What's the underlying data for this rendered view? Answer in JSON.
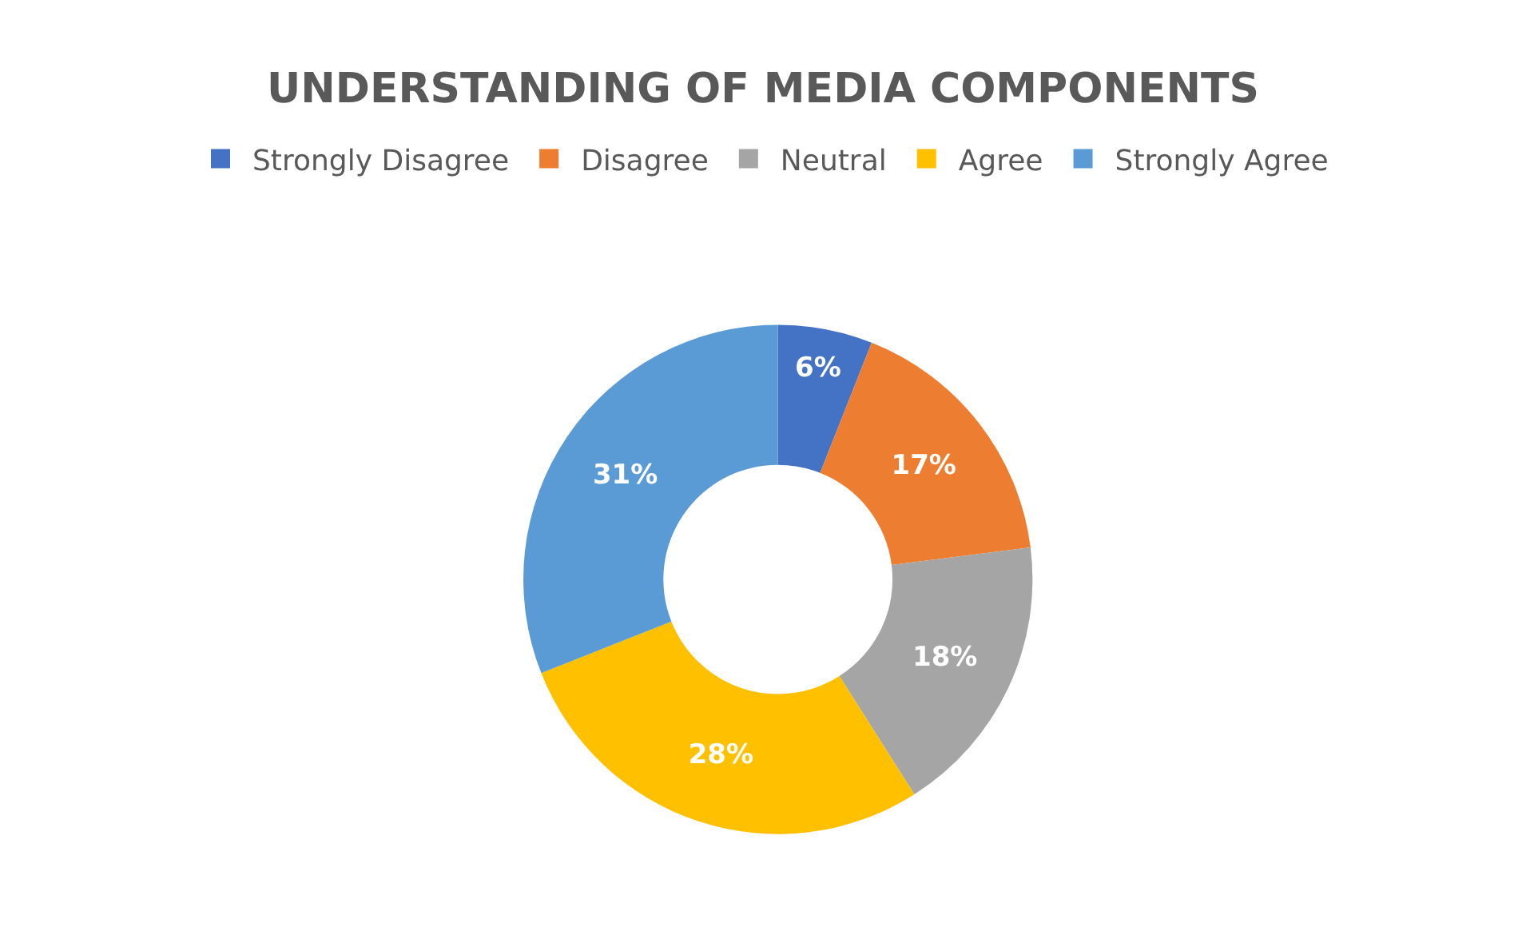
{
  "chart_data": {
    "type": "donut",
    "title": "UNDERSTANDING OF MEDIA COMPONENTS",
    "categories": [
      "Strongly Disagree",
      "Disagree",
      "Neutral",
      "Agree",
      "Strongly Agree"
    ],
    "values": [
      6,
      17,
      18,
      28,
      31
    ],
    "colors": [
      "#4472c4",
      "#ed7d31",
      "#a5a5a5",
      "#ffc000",
      "#5b9bd5"
    ],
    "value_labels": [
      "6%",
      "17%",
      "18%",
      "28%",
      "31%"
    ],
    "legend": "top"
  }
}
